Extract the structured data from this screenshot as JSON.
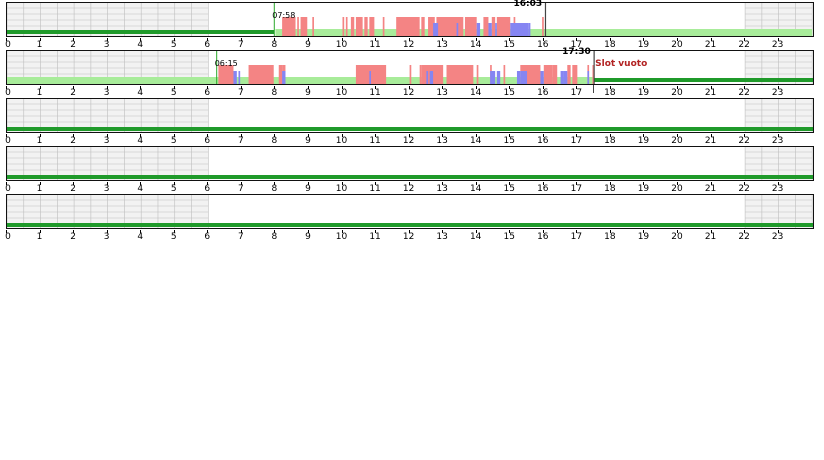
{
  "timeline": {
    "hours": [
      "0",
      "1",
      "2",
      "3",
      "4",
      "5",
      "6",
      "7",
      "8",
      "9",
      "10",
      "11",
      "12",
      "13",
      "14",
      "15",
      "16",
      "17",
      "18",
      "19",
      "20",
      "21",
      "22",
      "23"
    ],
    "day_start_hour": 6,
    "day_end_hour": 22,
    "colors": {
      "grid_fill": "#f2f2f2",
      "grid_line": "#bdbdbd",
      "baseline_green": "#1f9a2a",
      "light_green": "#a8ec9a",
      "work_red": "#f48484",
      "pause_blue": "#8585f2",
      "marker_green": "#2aa82a",
      "marker_dark": "#444444",
      "empty_slot_red": "#b22222"
    }
  },
  "lanes": [
    {
      "start_label": "07:58",
      "start_hour": 7.967,
      "end_label": "16:03",
      "end_hour": 16.05,
      "empty_slot_label": "",
      "light_green_from": 8.0,
      "light_green_to": 24.0,
      "low_green_level": 0.55,
      "red_blocks": [
        [
          8.2,
          8.6
        ],
        [
          8.65,
          8.7
        ],
        [
          8.75,
          8.95
        ],
        [
          9.1,
          9.15
        ],
        [
          10.0,
          10.05
        ],
        [
          10.1,
          10.15
        ],
        [
          10.25,
          10.35
        ],
        [
          10.4,
          10.6
        ],
        [
          10.65,
          10.75
        ],
        [
          10.8,
          10.95
        ],
        [
          11.2,
          11.25
        ],
        [
          11.6,
          12.3
        ],
        [
          12.35,
          12.45
        ],
        [
          12.55,
          12.75
        ],
        [
          12.8,
          13.6
        ],
        [
          13.65,
          14.0
        ],
        [
          14.2,
          14.35
        ],
        [
          14.45,
          14.55
        ],
        [
          14.6,
          15.0
        ],
        [
          15.1,
          15.15
        ],
        [
          15.95,
          16.0
        ]
      ],
      "blue_blocks": [
        [
          12.7,
          12.85
        ],
        [
          13.4,
          13.45
        ],
        [
          14.0,
          14.1
        ],
        [
          14.35,
          14.45
        ],
        [
          14.55,
          14.6
        ],
        [
          15.0,
          15.55
        ],
        [
          15.55,
          15.6
        ]
      ]
    },
    {
      "start_label": "06:15",
      "start_hour": 6.25,
      "end_label": "17:30",
      "end_hour": 17.5,
      "empty_slot_label": "Slot vuoto",
      "light_green_from": 0,
      "light_green_to": 17.5,
      "low_green_level": 0.0,
      "red_blocks": [
        [
          6.3,
          6.75
        ],
        [
          7.2,
          7.95
        ],
        [
          8.1,
          8.2
        ],
        [
          8.2,
          8.3
        ],
        [
          10.4,
          11.3
        ],
        [
          12.0,
          12.05
        ],
        [
          12.3,
          12.35
        ],
        [
          12.35,
          13.0
        ],
        [
          13.1,
          13.9
        ],
        [
          14.0,
          14.05
        ],
        [
          14.4,
          14.45
        ],
        [
          14.8,
          14.85
        ],
        [
          15.3,
          15.9
        ],
        [
          16.0,
          16.25
        ],
        [
          16.25,
          16.4
        ],
        [
          16.7,
          16.8
        ],
        [
          16.85,
          17.0
        ],
        [
          17.3,
          17.35
        ],
        [
          17.45,
          17.5
        ]
      ],
      "blue_blocks": [
        [
          6.75,
          6.85
        ],
        [
          6.9,
          6.95
        ],
        [
          8.2,
          8.3
        ],
        [
          10.8,
          10.85
        ],
        [
          12.5,
          12.55
        ],
        [
          12.6,
          12.7
        ],
        [
          14.4,
          14.55
        ],
        [
          14.6,
          14.7
        ],
        [
          15.2,
          15.3
        ],
        [
          15.3,
          15.5
        ],
        [
          15.9,
          16.0
        ],
        [
          16.5,
          16.6
        ],
        [
          16.6,
          16.7
        ],
        [
          17.3,
          17.35
        ]
      ]
    },
    {
      "start_label": "",
      "start_hour": null,
      "end_label": "",
      "end_hour": null,
      "empty_slot_label": "",
      "light_green_from": null,
      "light_green_to": null,
      "low_green_level": 0,
      "red_blocks": [],
      "blue_blocks": []
    },
    {
      "start_label": "",
      "start_hour": null,
      "end_label": "",
      "end_hour": null,
      "empty_slot_label": "",
      "light_green_from": null,
      "light_green_to": null,
      "low_green_level": 0,
      "red_blocks": [],
      "blue_blocks": []
    },
    {
      "start_label": "",
      "start_hour": null,
      "end_label": "",
      "end_hour": null,
      "empty_slot_label": "",
      "light_green_from": null,
      "light_green_to": null,
      "low_green_level": 0,
      "red_blocks": [],
      "blue_blocks": []
    }
  ]
}
